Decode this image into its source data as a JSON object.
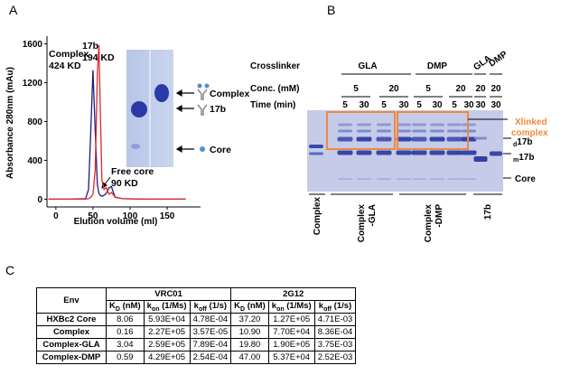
{
  "panels": [
    "A",
    "B",
    "C"
  ],
  "chart_data": {
    "type": "line",
    "y_label": "Absorbance 280nm (mAu)",
    "x_label": "Elution volume (ml)",
    "x": [
      -10,
      0,
      20,
      40,
      44,
      47,
      50,
      53,
      56,
      58,
      60,
      62,
      65,
      68,
      70,
      72,
      75,
      78,
      80,
      90,
      120,
      150,
      175
    ],
    "series": [
      {
        "name": "Complex",
        "color": "#1c1c80",
        "values": [
          0,
          0,
          0,
          5,
          100,
          700,
          1330,
          700,
          150,
          60,
          40,
          30,
          40,
          60,
          90,
          120,
          130,
          60,
          20,
          5,
          0,
          0,
          0
        ]
      },
      {
        "name": "17b",
        "color": "#e3262b",
        "values": [
          0,
          0,
          0,
          0,
          5,
          20,
          50,
          300,
          1300,
          1590,
          900,
          200,
          100,
          120,
          80,
          50,
          70,
          40,
          20,
          5,
          0,
          0,
          0
        ]
      }
    ],
    "annotations": [
      "424 KD",
      "194 KD",
      "Free core",
      "90 KD"
    ],
    "xlim": [
      -12,
      195
    ],
    "ylim": [
      -80,
      1680
    ],
    "xticks": [
      0,
      50,
      100,
      150
    ],
    "yticks": [
      0,
      400,
      800,
      1200,
      1600
    ]
  },
  "inset_labels": [
    "Complex",
    "17b",
    "Core"
  ],
  "gel": {
    "crosslinker_label": "Crosslinker",
    "crosslinkers": [
      "GLA",
      "DMP",
      "GLA",
      "DMP"
    ],
    "conc_label": "Conc. (mM)",
    "conc": [
      "5",
      "20",
      "5",
      "20",
      "20",
      "20"
    ],
    "time_label": "Time (min)",
    "times": [
      "5",
      "30",
      "5",
      "30",
      "5",
      "30",
      "5",
      "30",
      "30",
      "30"
    ],
    "xlinked": [
      "Xlinked",
      "complex"
    ],
    "d17b": {
      "sub": "d",
      "main": "17b"
    },
    "m17b": {
      "sub": "m",
      "main": "17b"
    },
    "core": "Core",
    "lanes": [
      [
        "Complex"
      ],
      [
        "Complex",
        "-GLA"
      ],
      [
        "Complex",
        "-DMP"
      ],
      [
        "17b"
      ]
    ]
  },
  "table": {
    "env": "Env",
    "groups": [
      "VRC01",
      "2G12"
    ],
    "columns": [
      {
        "main": "K",
        "sub": "D",
        "rest": " (nM)"
      },
      {
        "main": "k",
        "sub": "on",
        "rest": " (1/Ms)"
      },
      {
        "main": "k",
        "sub": "off",
        "rest": " (1/s)"
      }
    ],
    "rows": [
      [
        "HXBc2 Core",
        "8.06",
        "5.93E+04",
        "4.78E-04",
        "37.20",
        "1.27E+05",
        "4.71E-03"
      ],
      [
        "Complex",
        "0.16",
        "2.27E+05",
        "3.57E-05",
        "10.90",
        "7.70E+04",
        "8.36E-04"
      ],
      [
        "Complex-GLA",
        "3.04",
        "2.59E+05",
        "7.89E-04",
        "19.80",
        "1.90E+05",
        "3.75E-03"
      ],
      [
        "Complex-DMP",
        "0.59",
        "4.29E+05",
        "2.54E-04",
        "47.00",
        "5.37E+04",
        "2.52E-03"
      ]
    ]
  }
}
